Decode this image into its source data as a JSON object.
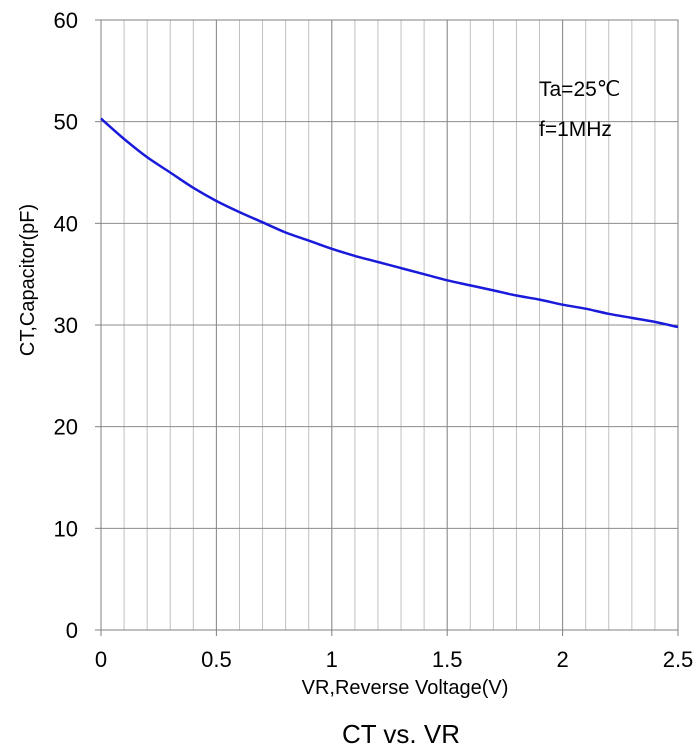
{
  "chart_data": {
    "type": "line",
    "title": "CT vs. VR",
    "xlabel": "VR,Reverse Voltage(V)",
    "ylabel": "CT,Capacitor(pF)",
    "xlim": [
      0,
      2.5
    ],
    "ylim": [
      0,
      60
    ],
    "x_ticks": [
      "0",
      "0.5",
      "1",
      "1.5",
      "2",
      "2.5"
    ],
    "y_ticks": [
      "0",
      "10",
      "20",
      "30",
      "40",
      "50",
      "60"
    ],
    "grid": true,
    "annotations": [
      "Ta=25℃",
      "f=1MHz"
    ],
    "series": [
      {
        "color": "#1a1adb",
        "x": [
          0,
          0.1,
          0.2,
          0.3,
          0.4,
          0.5,
          0.6,
          0.7,
          0.8,
          0.9,
          1.0,
          1.1,
          1.2,
          1.3,
          1.4,
          1.5,
          1.6,
          1.7,
          1.8,
          1.9,
          2.0,
          2.1,
          2.2,
          2.3,
          2.4,
          2.5
        ],
        "y": [
          50.3,
          48.3,
          46.5,
          45.0,
          43.5,
          42.2,
          41.1,
          40.1,
          39.1,
          38.3,
          37.5,
          36.8,
          36.2,
          35.6,
          35.0,
          34.4,
          33.9,
          33.4,
          32.9,
          32.5,
          32.0,
          31.6,
          31.1,
          30.7,
          30.3,
          29.8
        ]
      }
    ]
  }
}
